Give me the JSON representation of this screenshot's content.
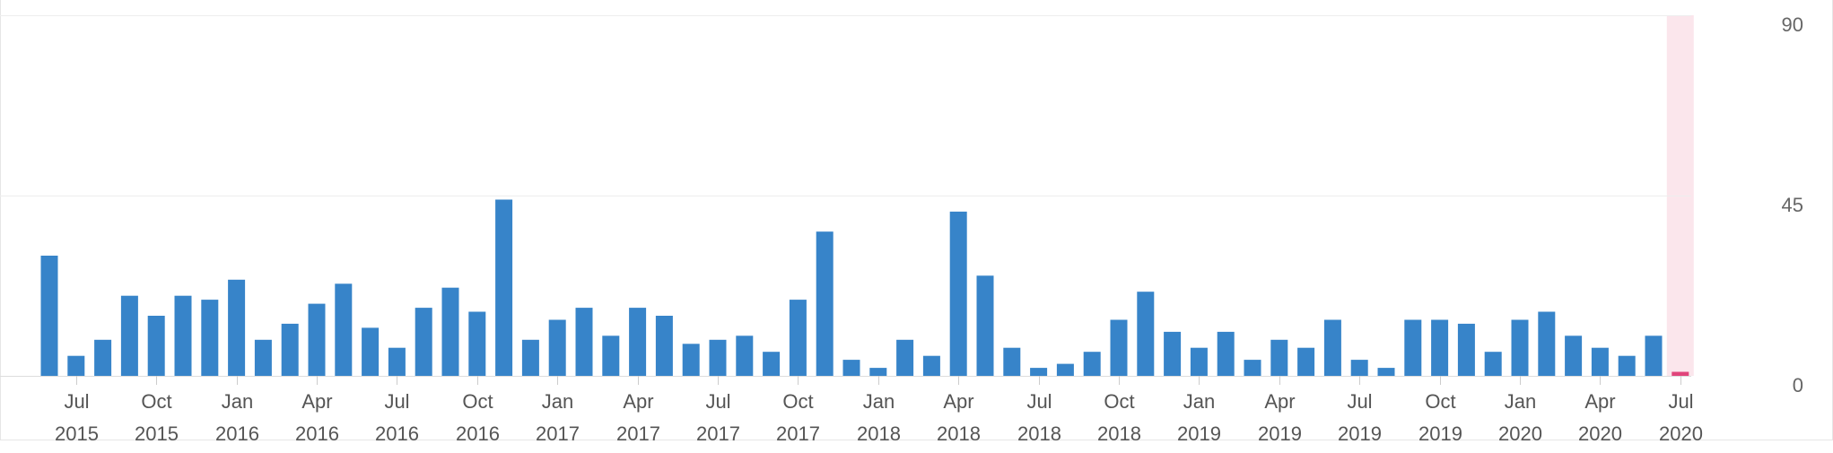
{
  "chart_data": {
    "type": "bar",
    "title": "",
    "xlabel": "",
    "ylabel": "",
    "ylim": [
      0,
      90
    ],
    "y_ticks": [
      0,
      45,
      90
    ],
    "y_axis_position": "right",
    "grid": true,
    "legend": "none",
    "colors": {
      "bar": "#3784c9",
      "highlight_bar": "#e0457b",
      "highlight_band": "#fbe6ec",
      "gridline": "#eeeeee",
      "baseline": "#dddddd",
      "tick_text": "#555555"
    },
    "categories": [
      "2015-06",
      "2015-07",
      "2015-08",
      "2015-09",
      "2015-10",
      "2015-11",
      "2015-12",
      "2016-01",
      "2016-02",
      "2016-03",
      "2016-04",
      "2016-05",
      "2016-06",
      "2016-07",
      "2016-08",
      "2016-09",
      "2016-10",
      "2016-11",
      "2016-12",
      "2017-01",
      "2017-02",
      "2017-03",
      "2017-04",
      "2017-05",
      "2017-06",
      "2017-07",
      "2017-08",
      "2017-09",
      "2017-10",
      "2017-11",
      "2017-12",
      "2018-01",
      "2018-02",
      "2018-03",
      "2018-04",
      "2018-05",
      "2018-06",
      "2018-07",
      "2018-08",
      "2018-09",
      "2018-10",
      "2018-11",
      "2018-12",
      "2019-01",
      "2019-02",
      "2019-03",
      "2019-04",
      "2019-05",
      "2019-06",
      "2019-07",
      "2019-08",
      "2019-09",
      "2019-10",
      "2019-11",
      "2019-12",
      "2020-01",
      "2020-02",
      "2020-03",
      "2020-04",
      "2020-05",
      "2020-06",
      "2020-07"
    ],
    "values": [
      30,
      5,
      9,
      20,
      15,
      20,
      19,
      24,
      9,
      13,
      18,
      23,
      12,
      7,
      17,
      22,
      16,
      44,
      9,
      14,
      17,
      10,
      17,
      15,
      8,
      9,
      10,
      6,
      19,
      36,
      4,
      2,
      9,
      5,
      41,
      25,
      7,
      2,
      3,
      6,
      14,
      21,
      11,
      7,
      11,
      4,
      9,
      7,
      14,
      4,
      2,
      14,
      14,
      13,
      6,
      14,
      16,
      10,
      7,
      5,
      10,
      1
    ],
    "highlight_index": 61,
    "x_tick_labels": [
      {
        "month": "Jul",
        "year": "2015",
        "category": "2015-07"
      },
      {
        "month": "Oct",
        "year": "2015",
        "category": "2015-10"
      },
      {
        "month": "Jan",
        "year": "2016",
        "category": "2016-01"
      },
      {
        "month": "Apr",
        "year": "2016",
        "category": "2016-04"
      },
      {
        "month": "Jul",
        "year": "2016",
        "category": "2016-07"
      },
      {
        "month": "Oct",
        "year": "2016",
        "category": "2016-10"
      },
      {
        "month": "Jan",
        "year": "2017",
        "category": "2017-01"
      },
      {
        "month": "Apr",
        "year": "2017",
        "category": "2017-04"
      },
      {
        "month": "Jul",
        "year": "2017",
        "category": "2017-07"
      },
      {
        "month": "Oct",
        "year": "2017",
        "category": "2017-10"
      },
      {
        "month": "Jan",
        "year": "2018",
        "category": "2018-01"
      },
      {
        "month": "Apr",
        "year": "2018",
        "category": "2018-04"
      },
      {
        "month": "Jul",
        "year": "2018",
        "category": "2018-07"
      },
      {
        "month": "Oct",
        "year": "2018",
        "category": "2018-10"
      },
      {
        "month": "Jan",
        "year": "2019",
        "category": "2019-01"
      },
      {
        "month": "Apr",
        "year": "2019",
        "category": "2019-04"
      },
      {
        "month": "Jul",
        "year": "2019",
        "category": "2019-07"
      },
      {
        "month": "Oct",
        "year": "2019",
        "category": "2019-10"
      },
      {
        "month": "Jan",
        "year": "2020",
        "category": "2020-01"
      },
      {
        "month": "Apr",
        "year": "2020",
        "category": "2020-04"
      },
      {
        "month": "Jul",
        "year": "2020",
        "category": "2020-07"
      }
    ]
  }
}
